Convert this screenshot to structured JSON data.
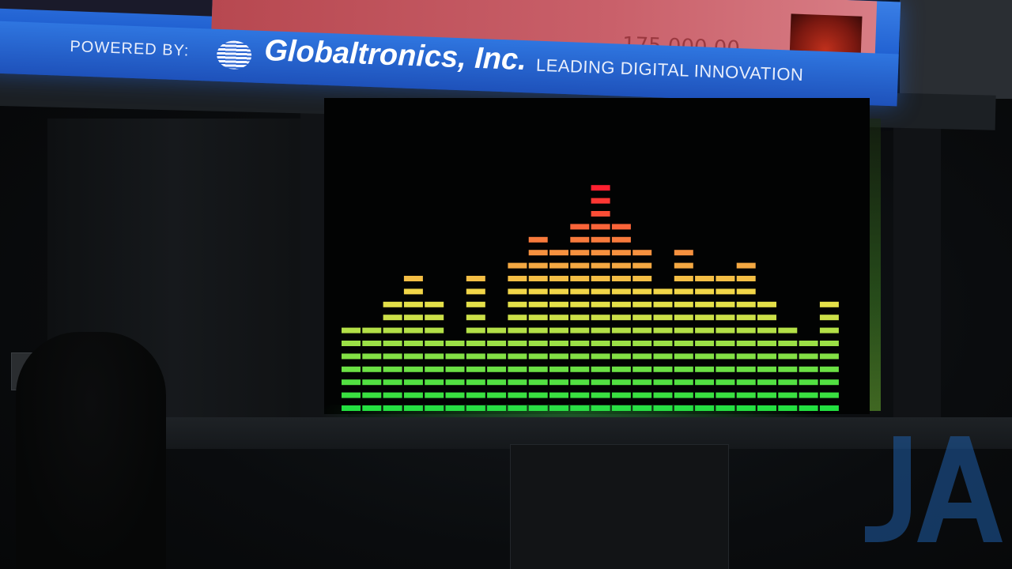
{
  "banner": {
    "powered_by": "POWERED BY:",
    "brand": "Globaltronics, Inc.",
    "tagline": "LEADING DIGITAL INNOVATION",
    "amount": "175,000.00",
    "colors": {
      "banner_blue": "#1f5fd0",
      "banner_red": "#c9606a"
    }
  },
  "equalizer": {
    "max_level": 18,
    "levels": [
      7,
      7,
      9,
      11,
      9,
      6,
      11,
      7,
      12,
      14,
      13,
      15,
      18,
      15,
      13,
      10,
      13,
      11,
      11,
      12,
      9,
      7,
      6,
      9
    ],
    "colors": {
      "low": "#22e040",
      "mid": "#f0e04a",
      "high": "#ff2030"
    }
  },
  "watermark": {
    "text": "JA",
    "color": "#1f5ea8"
  }
}
